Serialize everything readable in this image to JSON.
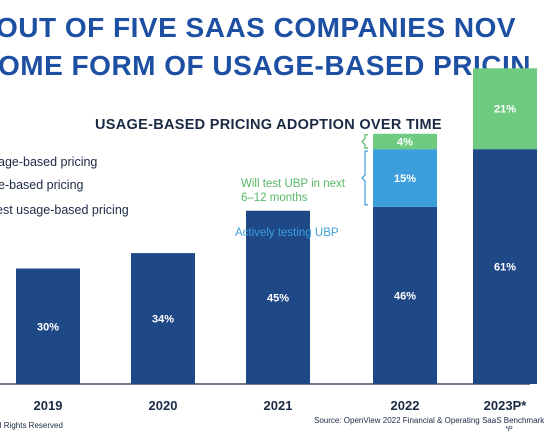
{
  "headline": {
    "line1": "OUT OF FIVE SAAS COMPANIES NOV",
    "line2": "OME FORM OF USAGE-BASED PRICIN"
  },
  "legend": [
    "age-based pricing",
    "e-based pricing",
    "est usage-based pricing"
  ],
  "footer": {
    "left": "ll Rights Reserved",
    "right": "Source: OpenView 2022 Financial & Operating SaaS Benchmark",
    "note": "*P"
  },
  "colors": {
    "headline": "#1d4fa3",
    "adopted": "#1f4886",
    "testing": "#3c9fdc",
    "will_test": "#6fcb7f",
    "will_test_text": "#57b865",
    "testing_text": "#3c9fdc",
    "axis": "#1b2a44"
  },
  "chart_data": {
    "type": "bar",
    "title": "USAGE-BASED PRICING ADOPTION OVER TIME",
    "categories": [
      "2019",
      "2020",
      "2021",
      "2022",
      "2023P*"
    ],
    "stacked": true,
    "series": [
      {
        "name": "age-based pricing",
        "values": [
          30,
          34,
          45,
          46,
          61
        ],
        "labels": [
          "30%",
          "34%",
          "45%",
          "46%",
          "61%"
        ]
      },
      {
        "name": "e-based pricing",
        "values": [
          0,
          0,
          0,
          15,
          0
        ],
        "labels": [
          "",
          "",
          "",
          "15%",
          ""
        ]
      },
      {
        "name": "est usage-based pricing",
        "values": [
          0,
          0,
          0,
          4,
          21
        ],
        "labels": [
          "",
          "",
          "",
          "4%",
          "21%"
        ]
      }
    ],
    "annotations": [
      {
        "text": "Will test UBP in next",
        "text2": "6–12 months"
      },
      {
        "text": "Actively testing UBP"
      }
    ],
    "xlabel": "",
    "ylabel": "",
    "grid": false
  }
}
